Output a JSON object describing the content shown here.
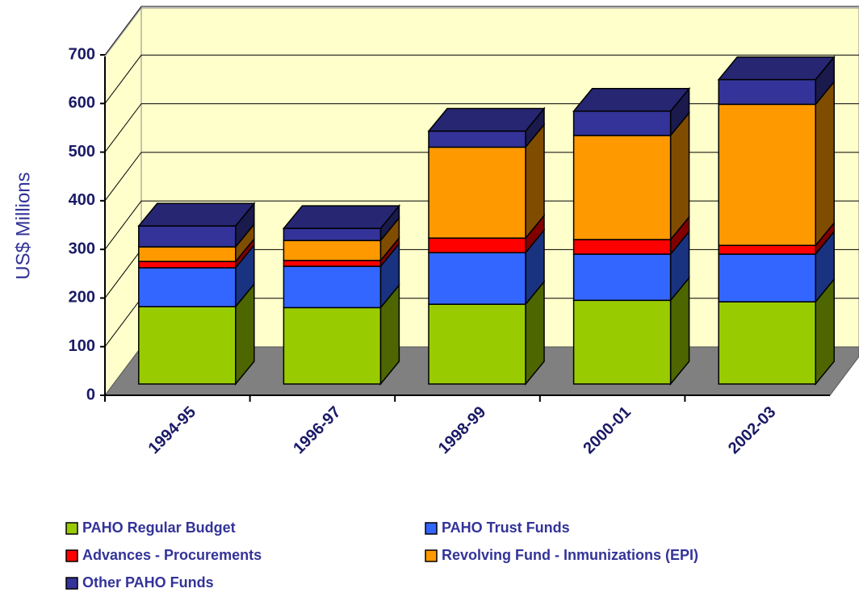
{
  "chart_data": {
    "type": "bar3d_stacked",
    "y_label": "US$ Millions",
    "categories": [
      "1994-95",
      "1996-97",
      "1998-99",
      "2000-01",
      "2002-03"
    ],
    "series": [
      {
        "name": "PAHO Regular Budget",
        "color": "#99cc00",
        "values": [
          159,
          157,
          164,
          172,
          169
        ]
      },
      {
        "name": "PAHO Trust Funds",
        "color": "#3366ff",
        "values": [
          80,
          85,
          106,
          95,
          98
        ]
      },
      {
        "name": "Advances - Procurements",
        "color": "#ff0000",
        "values": [
          13,
          12,
          30,
          30,
          18
        ]
      },
      {
        "name": "Revolving Fund - Inmunizations (EPI)",
        "color": "#ff9900",
        "values": [
          30,
          41,
          187,
          214,
          290
        ]
      },
      {
        "name": "Other PAHO Funds",
        "color": "#333399",
        "values": [
          43,
          25,
          33,
          50,
          51
        ]
      }
    ],
    "ylim": [
      0,
      700
    ],
    "yticks": [
      0,
      100,
      200,
      300,
      400,
      500,
      600,
      700
    ],
    "grid": true
  }
}
